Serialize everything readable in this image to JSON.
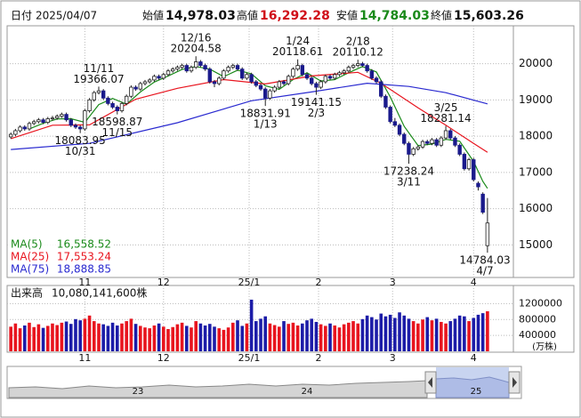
{
  "header": {
    "date_label": "日付",
    "date": "2025/04/07",
    "items": [
      {
        "label": "始値",
        "value": "14,978.03",
        "color": "#111111"
      },
      {
        "label": "高値",
        "value": "16,292.28",
        "color": "#d0101a"
      },
      {
        "label": "安値",
        "value": "14,784.03",
        "color": "#1a8a1a"
      },
      {
        "label": "終値",
        "value": "15,603.26",
        "color": "#111111"
      }
    ]
  },
  "chart_data": {
    "type": "candlestick",
    "xlim": [
      -0.8,
      108.6
    ],
    "ylim": [
      14100,
      21020
    ],
    "yticks": [
      15000,
      16000,
      17000,
      18000,
      19000,
      20000
    ],
    "grid": true,
    "xticks": [
      {
        "value": 16,
        "label": "11"
      },
      {
        "value": 33,
        "label": "12"
      },
      {
        "value": 51.5,
        "label": "25/1"
      },
      {
        "value": 66.5,
        "label": "2"
      },
      {
        "value": 82.5,
        "label": "3"
      },
      {
        "value": 100,
        "label": "4"
      }
    ],
    "up_color": "#ffffff",
    "down_color": "#1a1a8c",
    "ohlc": [
      [
        17980,
        18100,
        17930,
        18050
      ],
      [
        18050,
        18200,
        18000,
        18150
      ],
      [
        18150,
        18300,
        18100,
        18250
      ],
      [
        18250,
        18300,
        18150,
        18200
      ],
      [
        18200,
        18400,
        18150,
        18350
      ],
      [
        18350,
        18450,
        18300,
        18400
      ],
      [
        18400,
        18500,
        18350,
        18450
      ],
      [
        18450,
        18500,
        18330,
        18380
      ],
      [
        18380,
        18530,
        18330,
        18480
      ],
      [
        18480,
        18560,
        18430,
        18500
      ],
      [
        18500,
        18600,
        18450,
        18550
      ],
      [
        18550,
        18650,
        18500,
        18600
      ],
      [
        18600,
        18650,
        18400,
        18450
      ],
      [
        18450,
        18500,
        18250,
        18300
      ],
      [
        18300,
        18350,
        18200,
        18250
      ],
      [
        18250,
        18300,
        18083.95,
        18200
      ],
      [
        18200,
        18750,
        18150,
        18700
      ],
      [
        18700,
        19050,
        18650,
        19000
      ],
      [
        19000,
        19250,
        18950,
        19200
      ],
      [
        19200,
        19366.07,
        19150,
        19250
      ],
      [
        19250,
        19300,
        19000,
        19050
      ],
      [
        19050,
        19100,
        18850,
        18900
      ],
      [
        18900,
        18950,
        18750,
        18800
      ],
      [
        18800,
        18850,
        18598.87,
        18700
      ],
      [
        18700,
        18950,
        18650,
        18900
      ],
      [
        18900,
        19150,
        18850,
        19100
      ],
      [
        19100,
        19400,
        19050,
        19350
      ],
      [
        19350,
        19400,
        19250,
        19300
      ],
      [
        19300,
        19500,
        19250,
        19450
      ],
      [
        19450,
        19550,
        19400,
        19500
      ],
      [
        19500,
        19600,
        19450,
        19550
      ],
      [
        19550,
        19700,
        19500,
        19650
      ],
      [
        19650,
        19700,
        19550,
        19600
      ],
      [
        19600,
        19750,
        19550,
        19700
      ],
      [
        19700,
        19850,
        19650,
        19800
      ],
      [
        19800,
        19900,
        19750,
        19850
      ],
      [
        19850,
        19950,
        19800,
        19900
      ],
      [
        19900,
        20000,
        19850,
        19950
      ],
      [
        19950,
        20000,
        19750,
        19800
      ],
      [
        19800,
        19950,
        19750,
        19900
      ],
      [
        19900,
        20204.58,
        19850,
        20050
      ],
      [
        20050,
        20100,
        19900,
        19950
      ],
      [
        19950,
        20000,
        19800,
        19850
      ],
      [
        19850,
        19900,
        19450,
        19500
      ],
      [
        19500,
        19550,
        19350,
        19450
      ],
      [
        19450,
        19650,
        19400,
        19600
      ],
      [
        19600,
        19850,
        19550,
        19800
      ],
      [
        19800,
        19950,
        19750,
        19900
      ],
      [
        19900,
        20000,
        19850,
        19950
      ],
      [
        19950,
        20000,
        19800,
        19850
      ],
      [
        19850,
        19900,
        19550,
        19600
      ],
      [
        19600,
        19750,
        19550,
        19700
      ],
      [
        19700,
        19750,
        19450,
        19500
      ],
      [
        19500,
        19550,
        19350,
        19400
      ],
      [
        19400,
        19450,
        19250,
        19300
      ],
      [
        19300,
        19350,
        18831.91,
        19050
      ],
      [
        19050,
        19300,
        19000,
        19250
      ],
      [
        19250,
        19400,
        19200,
        19350
      ],
      [
        19350,
        19550,
        19300,
        19500
      ],
      [
        19500,
        19550,
        19400,
        19450
      ],
      [
        19450,
        19700,
        19400,
        19650
      ],
      [
        19650,
        19900,
        19600,
        19850
      ],
      [
        19850,
        20118.61,
        19800,
        19950
      ],
      [
        19950,
        20000,
        19650,
        19700
      ],
      [
        19700,
        19750,
        19550,
        19600
      ],
      [
        19600,
        19650,
        19400,
        19450
      ],
      [
        19450,
        19500,
        19141.15,
        19350
      ],
      [
        19350,
        19550,
        19300,
        19500
      ],
      [
        19500,
        19700,
        19450,
        19650
      ],
      [
        19650,
        19700,
        19550,
        19600
      ],
      [
        19600,
        19750,
        19550,
        19700
      ],
      [
        19700,
        19800,
        19650,
        19750
      ],
      [
        19750,
        19850,
        19700,
        19800
      ],
      [
        19800,
        19950,
        19750,
        19900
      ],
      [
        19900,
        20000,
        19850,
        19950
      ],
      [
        19950,
        20110.12,
        19900,
        20000
      ],
      [
        20000,
        20050,
        19900,
        19950
      ],
      [
        19950,
        20000,
        19750,
        19800
      ],
      [
        19800,
        19850,
        19550,
        19600
      ],
      [
        19600,
        19650,
        19450,
        19500
      ],
      [
        19500,
        19550,
        19050,
        19100
      ],
      [
        19100,
        19150,
        18750,
        18800
      ],
      [
        18800,
        18850,
        18350,
        18400
      ],
      [
        18400,
        18500,
        18250,
        18300
      ],
      [
        18300,
        18350,
        18000,
        18050
      ],
      [
        18050,
        18100,
        17750,
        17800
      ],
      [
        17800,
        17850,
        17238.24,
        17500
      ],
      [
        17500,
        17700,
        17450,
        17650
      ],
      [
        17650,
        17750,
        17600,
        17700
      ],
      [
        17700,
        17900,
        17650,
        17850
      ],
      [
        17850,
        17900,
        17750,
        17800
      ],
      [
        17800,
        17950,
        17750,
        17900
      ],
      [
        17900,
        17950,
        17700,
        17750
      ],
      [
        17750,
        18000,
        17700,
        17950
      ],
      [
        17950,
        18281.14,
        17900,
        18150
      ],
      [
        18150,
        18200,
        17900,
        17950
      ],
      [
        17950,
        18000,
        17700,
        17750
      ],
      [
        17750,
        17800,
        17450,
        17500
      ],
      [
        17500,
        17550,
        17050,
        17100
      ],
      [
        17100,
        17400,
        17050,
        17350
      ],
      [
        17350,
        17400,
        16750,
        16800
      ],
      [
        16700,
        16750,
        16500,
        16600
      ],
      [
        16400,
        16450,
        15850,
        15900
      ],
      [
        14978.03,
        16292.28,
        14784.03,
        15603.26
      ]
    ],
    "series": [
      {
        "name": "MA(5)",
        "color": "#1a8a1a",
        "legend_value": "16,558.52",
        "x": [
          4,
          7,
          10,
          13,
          16,
          19,
          22,
          25,
          28,
          31,
          34,
          37,
          40,
          43,
          46,
          49,
          52,
          55,
          58,
          61,
          64,
          67,
          70,
          73,
          76,
          79,
          82,
          85,
          88,
          91,
          94,
          97,
          100,
          102,
          103
        ],
        "values": [
          18200,
          18356,
          18472,
          18480,
          18380,
          18870,
          19040,
          18880,
          19220,
          19490,
          19660,
          19840,
          19920,
          19850,
          19640,
          19820,
          19720,
          19390,
          19290,
          19560,
          19750,
          19520,
          19560,
          19750,
          19920,
          19770,
          19080,
          18270,
          17740,
          17780,
          17910,
          17860,
          17300,
          16750,
          16558.52
        ]
      },
      {
        "name": "MA(25)",
        "color": "#e8141e",
        "legend_value": "17,553.24",
        "x": [
          0,
          9,
          17,
          27,
          36,
          46,
          55,
          65,
          75,
          80,
          88,
          94,
          100,
          103
        ],
        "values": [
          17930,
          18300,
          18310,
          19020,
          19320,
          19560,
          19440,
          19660,
          19760,
          19460,
          18780,
          18300,
          17800,
          17553.24
        ]
      },
      {
        "name": "MA(75)",
        "color": "#2a2ad0",
        "legend_value": "18,888.85",
        "x": [
          0,
          17,
          36,
          52,
          65,
          77,
          86,
          94,
          103
        ],
        "values": [
          17630,
          17800,
          18370,
          18975,
          19220,
          19460,
          19370,
          19200,
          18888.85
        ]
      }
    ],
    "annotations": [
      {
        "date": "10/31",
        "value": 18083.95
      },
      {
        "date": "11/11",
        "value": 19366.07
      },
      {
        "date": "11/15",
        "value": 18598.87
      },
      {
        "date": "12/16",
        "value": 20204.58
      },
      {
        "date": "1/13",
        "value": 18831.91
      },
      {
        "date": "1/24",
        "value": 20118.61
      },
      {
        "date": "2/3",
        "value": 19141.15
      },
      {
        "date": "2/18",
        "value": 20110.12
      },
      {
        "date": "3/11",
        "value": 17238.24
      },
      {
        "date": "3/25",
        "value": 18281.14
      },
      {
        "date": "4/7",
        "value": 14784.03
      }
    ],
    "volume": {
      "label": "出来高",
      "total": "10,080,141,600株",
      "unit": "(万株)",
      "ylim": [
        0,
        1590000
      ],
      "yticks": [
        400000,
        800000,
        1200000
      ],
      "up_color": "#e8141e",
      "down_color": "#1c1ca8",
      "values": [
        620000,
        700000,
        580000,
        650000,
        720000,
        610000,
        680000,
        590000,
        640000,
        700000,
        660000,
        720000,
        750000,
        690000,
        810000,
        780000,
        820000,
        900000,
        760000,
        700000,
        680000,
        640000,
        720000,
        650000,
        700000,
        760000,
        820000,
        690000,
        640000,
        600000,
        580000,
        650000,
        700000,
        620000,
        560000,
        610000,
        680000,
        720000,
        640000,
        600000,
        760000,
        700000,
        650000,
        690000,
        620000,
        580000,
        540000,
        600000,
        720000,
        780000,
        640000,
        700000,
        1300000,
        760000,
        820000,
        880000,
        700000,
        660000,
        620000,
        760000,
        690000,
        720000,
        650000,
        700000,
        780000,
        820000,
        740000,
        680000,
        640000,
        700000,
        650000,
        600000,
        680000,
        720000,
        760000,
        700000,
        810000,
        900000,
        860000,
        800000,
        950000,
        880000,
        920000,
        840000,
        980000,
        900000,
        820000,
        760000,
        700000,
        800000,
        860000,
        780000,
        820000,
        740000,
        700000,
        760000,
        820000,
        900000,
        880000,
        760000,
        840000,
        920000,
        960000,
        1008014
      ]
    }
  },
  "navigator": {
    "labels": [
      "23",
      "24",
      "25"
    ]
  }
}
